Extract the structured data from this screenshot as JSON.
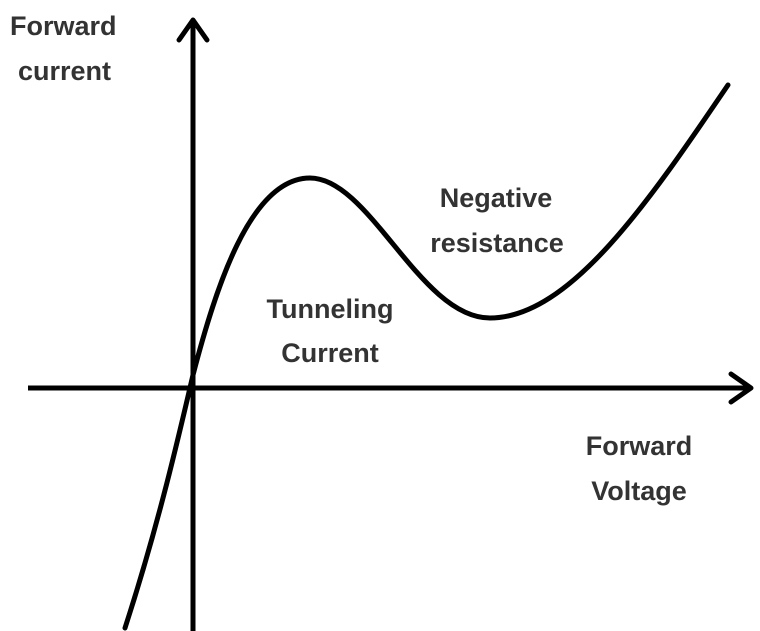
{
  "y_axis_label": [
    "Forward",
    "current"
  ],
  "x_axis_label": [
    "Forward",
    "Voltage"
  ],
  "annotations": [
    {
      "lines": [
        "Negative",
        "resistance"
      ]
    },
    {
      "lines": [
        "Tunneling",
        "Current"
      ]
    }
  ]
}
